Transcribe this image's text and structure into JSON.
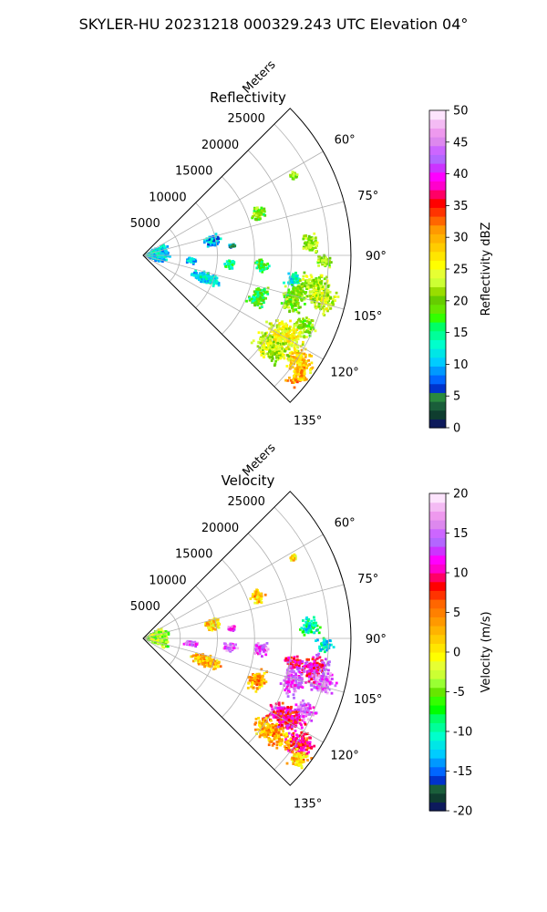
{
  "figure": {
    "title": "SKYLER-HU  20231218  000329.243 UTC Elevation 04°"
  },
  "chart_data": [
    {
      "type": "heatmap",
      "projection": "polar sector (PPI)",
      "title": "Reflectivity",
      "radial_axis_label": "Meters",
      "range_ticks": [
        "5000",
        "10000",
        "15000",
        "20000",
        "25000"
      ],
      "range_tick_values": [
        5000,
        10000,
        15000,
        20000,
        25000
      ],
      "range_max": 28000,
      "azimuth_ticks": [
        "60°",
        "75°",
        "90°",
        "105°",
        "120°",
        "135°"
      ],
      "azimuth_tick_values": [
        60,
        75,
        90,
        105,
        120,
        135
      ],
      "azimuth_range": [
        45,
        135
      ],
      "grid": true,
      "colorbar": {
        "label": "Reflectivity dBZ",
        "ticks": [
          "0",
          "5",
          "10",
          "15",
          "20",
          "25",
          "30",
          "35",
          "40",
          "45",
          "50"
        ],
        "range": [
          0,
          50
        ],
        "colors": [
          "#0d1a5c",
          "#0f3d2f",
          "#1a5e3a",
          "#2a8a3e",
          "#0033cc",
          "#0066ff",
          "#0099ff",
          "#00ccff",
          "#00e6e6",
          "#00ffcc",
          "#00ff99",
          "#00ff66",
          "#33ff00",
          "#66e600",
          "#66cc00",
          "#99dd00",
          "#ccff33",
          "#e6ff33",
          "#ffff00",
          "#ffe600",
          "#ffcc00",
          "#ffb300",
          "#ff9900",
          "#ff6600",
          "#ff3300",
          "#ff0000",
          "#ff0066",
          "#ff00cc",
          "#ff00ff",
          "#cc33ff",
          "#b366ff",
          "#cc66ff",
          "#dd88ee",
          "#ee99ee",
          "#f4bbf4",
          "#fde4fd"
        ]
      },
      "echo_cells": [
        {
          "az": 70,
          "r": 16500,
          "dr": 1200,
          "daz": 4,
          "value": 20
        },
        {
          "az": 62,
          "r": 23000,
          "dr": 500,
          "daz": 1.5,
          "value": 20
        },
        {
          "az": 78,
          "r": 9600,
          "dr": 1400,
          "daz": 6,
          "value": 10
        },
        {
          "az": 84,
          "r": 12000,
          "dr": 600,
          "daz": 2,
          "value": 8
        },
        {
          "az": 86,
          "r": 22500,
          "dr": 1600,
          "daz": 4,
          "value": 22
        },
        {
          "az": 92,
          "r": 24500,
          "dr": 1500,
          "daz": 3,
          "value": 21
        },
        {
          "az": 95,
          "r": 16000,
          "dr": 1200,
          "daz": 4,
          "value": 17
        },
        {
          "az": 96,
          "r": 11800,
          "dr": 1100,
          "daz": 4,
          "value": 14
        },
        {
          "az": 99,
          "r": 20500,
          "dr": 1600,
          "daz": 3,
          "value": 13
        },
        {
          "az": 100,
          "r": 23500,
          "dr": 2600,
          "daz": 6,
          "value": 22
        },
        {
          "az": 104,
          "r": 25000,
          "dr": 2300,
          "daz": 5,
          "value": 23
        },
        {
          "az": 106,
          "r": 21000,
          "dr": 2000,
          "daz": 7,
          "value": 20
        },
        {
          "az": 110,
          "r": 16500,
          "dr": 1600,
          "daz": 6,
          "value": 17
        },
        {
          "az": 114,
          "r": 24000,
          "dr": 1800,
          "daz": 4,
          "value": 21
        },
        {
          "az": 110,
          "r": 9000,
          "dr": 2500,
          "daz": 6,
          "value": 12
        },
        {
          "az": 96,
          "r": 6500,
          "dr": 1000,
          "daz": 4,
          "value": 10
        },
        {
          "az": 119,
          "r": 22000,
          "dr": 3500,
          "daz": 6,
          "value": 25
        },
        {
          "az": 124,
          "r": 25500,
          "dr": 2600,
          "daz": 5,
          "value": 28
        },
        {
          "az": 126,
          "r": 21500,
          "dr": 3500,
          "daz": 5,
          "value": 23
        },
        {
          "az": 128,
          "r": 26500,
          "dr": 1500,
          "daz": 4,
          "value": 30
        },
        {
          "az": 87,
          "r": 2000,
          "dr": 1800,
          "daz": 30,
          "value": 11
        }
      ]
    },
    {
      "type": "heatmap",
      "projection": "polar sector (PPI)",
      "title": "Velocity",
      "radial_axis_label": "Meters",
      "range_ticks": [
        "5000",
        "10000",
        "15000",
        "20000",
        "25000"
      ],
      "range_tick_values": [
        5000,
        10000,
        15000,
        20000,
        25000
      ],
      "range_max": 28000,
      "azimuth_ticks": [
        "60°",
        "75°",
        "90°",
        "105°",
        "120°",
        "135°"
      ],
      "azimuth_tick_values": [
        60,
        75,
        90,
        105,
        120,
        135
      ],
      "azimuth_range": [
        45,
        135
      ],
      "grid": true,
      "colorbar": {
        "label": "Velocity (m/s)",
        "ticks": [
          "-20",
          "-15",
          "-10",
          "-5",
          "0",
          "5",
          "10",
          "15",
          "20"
        ],
        "range": [
          -20,
          20
        ],
        "colors": [
          "#0d1a5c",
          "#0f3d2f",
          "#1a5e3a",
          "#0033cc",
          "#0066ff",
          "#0099ff",
          "#00ccff",
          "#00e6e6",
          "#00ffcc",
          "#00ff99",
          "#00ff66",
          "#00ff00",
          "#33ff00",
          "#66e600",
          "#99ff33",
          "#ccff33",
          "#e6ff33",
          "#ffff00",
          "#ffe600",
          "#ffcc00",
          "#ffb300",
          "#ff9900",
          "#ff8000",
          "#ff6600",
          "#ff3300",
          "#ff0000",
          "#ff0066",
          "#ff00cc",
          "#ff00ff",
          "#cc33ff",
          "#b366ff",
          "#cc66ff",
          "#dd88ee",
          "#ee99ee",
          "#f4bbf4",
          "#fde4fd"
        ]
      },
      "echo_cells": [
        {
          "az": 70,
          "r": 16500,
          "dr": 1200,
          "daz": 4,
          "value": 2
        },
        {
          "az": 62,
          "r": 23000,
          "dr": 500,
          "daz": 1.5,
          "value": 1
        },
        {
          "az": 78,
          "r": 9600,
          "dr": 1400,
          "daz": 6,
          "value": 1
        },
        {
          "az": 84,
          "r": 12000,
          "dr": 600,
          "daz": 2,
          "value": 14
        },
        {
          "az": 86,
          "r": 22500,
          "dr": 1600,
          "daz": 4,
          "value": -10
        },
        {
          "az": 92,
          "r": 24500,
          "dr": 1500,
          "daz": 3,
          "value": -11
        },
        {
          "az": 95,
          "r": 16000,
          "dr": 1200,
          "daz": 4,
          "value": 14
        },
        {
          "az": 96,
          "r": 11800,
          "dr": 1100,
          "daz": 4,
          "value": 15
        },
        {
          "az": 99,
          "r": 20500,
          "dr": 1600,
          "daz": 3,
          "value": 10
        },
        {
          "az": 100,
          "r": 23500,
          "dr": 2600,
          "daz": 6,
          "value": 11
        },
        {
          "az": 104,
          "r": 25000,
          "dr": 2300,
          "daz": 5,
          "value": 15
        },
        {
          "az": 106,
          "r": 21000,
          "dr": 2000,
          "daz": 7,
          "value": 14
        },
        {
          "az": 110,
          "r": 16500,
          "dr": 1600,
          "daz": 6,
          "value": 3
        },
        {
          "az": 114,
          "r": 24000,
          "dr": 1800,
          "daz": 4,
          "value": 14
        },
        {
          "az": 110,
          "r": 9000,
          "dr": 2500,
          "daz": 6,
          "value": 2
        },
        {
          "az": 96,
          "r": 6500,
          "dr": 1000,
          "daz": 4,
          "value": 14
        },
        {
          "az": 119,
          "r": 22000,
          "dr": 3500,
          "daz": 6,
          "value": 10
        },
        {
          "az": 124,
          "r": 25500,
          "dr": 2600,
          "daz": 5,
          "value": 9
        },
        {
          "az": 126,
          "r": 21500,
          "dr": 3500,
          "daz": 5,
          "value": 3
        },
        {
          "az": 128,
          "r": 26500,
          "dr": 1500,
          "daz": 4,
          "value": 1
        },
        {
          "az": 87,
          "r": 2000,
          "dr": 1800,
          "daz": 30,
          "value": -4
        }
      ]
    }
  ]
}
